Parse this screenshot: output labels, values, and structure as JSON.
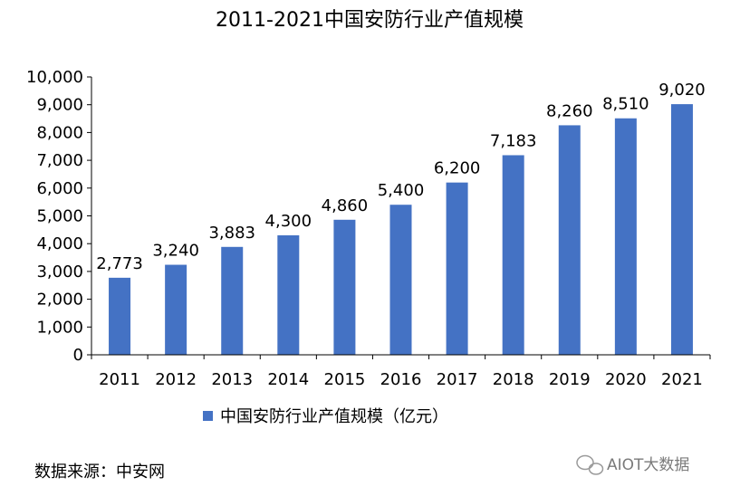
{
  "chart_data": {
    "type": "bar",
    "title": "2011-2021中国安防行业产值规模",
    "categories": [
      "2011",
      "2012",
      "2013",
      "2014",
      "2015",
      "2016",
      "2017",
      "2018",
      "2019",
      "2020",
      "2021"
    ],
    "series": [
      {
        "name": "中国安防行业产值规模（亿元）",
        "values": [
          2773,
          3240,
          3883,
          4300,
          4860,
          5400,
          6200,
          7183,
          8260,
          8510,
          9020
        ],
        "labels": [
          "2,773",
          "3,240",
          "3,883",
          "4,300",
          "4,860",
          "5,400",
          "6,200",
          "7,183",
          "8,260",
          "8,510",
          "9,020"
        ],
        "color": "#4472C4"
      }
    ],
    "ylim": [
      0,
      10000
    ],
    "yticks": [
      "0",
      "1,000",
      "2,000",
      "3,000",
      "4,000",
      "5,000",
      "6,000",
      "7,000",
      "8,000",
      "9,000",
      "10,000"
    ],
    "grid": false,
    "legend_position": "bottom-center"
  },
  "source_text": "数据来源：中安网",
  "watermark_text": "AIOT大数据"
}
